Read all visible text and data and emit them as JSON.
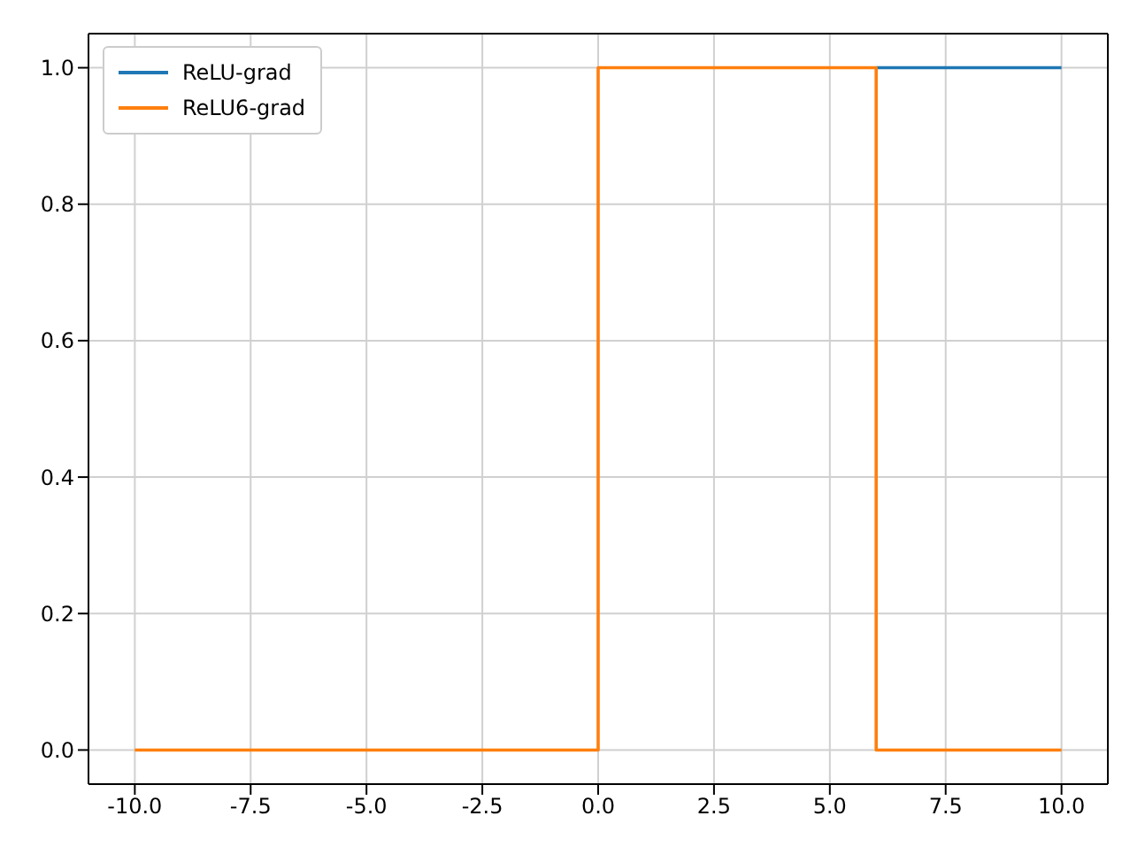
{
  "chart_data": {
    "type": "line",
    "xlim": [
      -11,
      11
    ],
    "ylim": [
      -0.05,
      1.05
    ],
    "xticks": [
      {
        "value": -10,
        "label": "-10.0"
      },
      {
        "value": -7.5,
        "label": "-7.5"
      },
      {
        "value": -5,
        "label": "-5.0"
      },
      {
        "value": -2.5,
        "label": "-2.5"
      },
      {
        "value": 0,
        "label": "0.0"
      },
      {
        "value": 2.5,
        "label": "2.5"
      },
      {
        "value": 5,
        "label": "5.0"
      },
      {
        "value": 7.5,
        "label": "7.5"
      },
      {
        "value": 10,
        "label": "10.0"
      }
    ],
    "yticks": [
      {
        "value": 0,
        "label": "0.0"
      },
      {
        "value": 0.2,
        "label": "0.2"
      },
      {
        "value": 0.4,
        "label": "0.4"
      },
      {
        "value": 0.6,
        "label": "0.6"
      },
      {
        "value": 0.8,
        "label": "0.8"
      },
      {
        "value": 1,
        "label": "1.0"
      }
    ],
    "grid": true,
    "legend": "top left",
    "marker": "none",
    "line_style": "solid",
    "series": [
      {
        "name": "ReLU-grad",
        "color": "#1f77b4",
        "x": [
          6,
          10
        ],
        "values": [
          1,
          1
        ]
      },
      {
        "name": "ReLU6-grad",
        "color": "#ff7f0e",
        "x": [
          -10,
          0,
          0,
          6,
          6,
          10
        ],
        "values": [
          0,
          0,
          1,
          1,
          0,
          0
        ]
      }
    ]
  }
}
